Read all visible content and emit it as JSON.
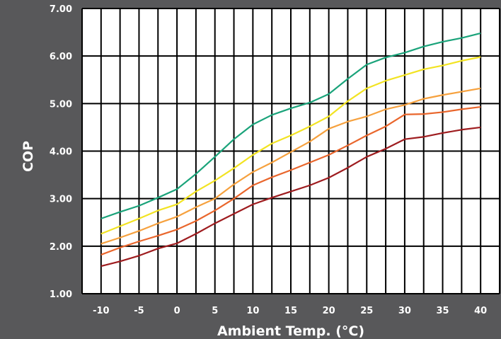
{
  "chart_data": {
    "type": "line",
    "xlabel": "Ambient Temp. (°C)",
    "ylabel": "COP",
    "x_tick_labels": [
      "-10",
      "-5",
      "0",
      "5",
      "10",
      "15",
      "20",
      "25",
      "30",
      "35",
      "40"
    ],
    "y_tick_labels": [
      "1.00",
      "2.00",
      "3.00",
      "4.00",
      "5.00",
      "6.00",
      "7.00"
    ],
    "xlim": [
      -12.5,
      42.5
    ],
    "ylim": [
      1,
      7
    ],
    "grid": "vertical lines every 2.5 °C, horizontal lines at each 1.00",
    "x": [
      -10,
      -7.5,
      -5,
      -2.5,
      0,
      2.5,
      5,
      7.5,
      10,
      12.5,
      15,
      17.5,
      20,
      22.5,
      25,
      27.5,
      30,
      32.5,
      35,
      37.5,
      40
    ],
    "series": [
      {
        "color": "#1aa37a",
        "values": [
          2.58,
          2.72,
          2.85,
          3.02,
          3.2,
          3.52,
          3.88,
          4.25,
          4.56,
          4.76,
          4.9,
          5.02,
          5.2,
          5.52,
          5.82,
          5.97,
          6.07,
          6.2,
          6.3,
          6.38,
          6.48
        ]
      },
      {
        "color": "#f2e322",
        "values": [
          2.26,
          2.42,
          2.58,
          2.75,
          2.88,
          3.15,
          3.38,
          3.64,
          3.92,
          4.16,
          4.33,
          4.52,
          4.73,
          5.05,
          5.32,
          5.48,
          5.6,
          5.72,
          5.8,
          5.9,
          5.98
        ]
      },
      {
        "color": "#f6a13e",
        "values": [
          2.05,
          2.18,
          2.32,
          2.48,
          2.62,
          2.82,
          3.0,
          3.3,
          3.56,
          3.76,
          3.98,
          4.2,
          4.47,
          4.62,
          4.73,
          4.88,
          4.97,
          5.1,
          5.18,
          5.25,
          5.32
        ]
      },
      {
        "color": "#e9662c",
        "values": [
          1.82,
          1.97,
          2.1,
          2.22,
          2.35,
          2.53,
          2.75,
          3.0,
          3.28,
          3.45,
          3.6,
          3.76,
          3.92,
          4.12,
          4.33,
          4.52,
          4.77,
          4.78,
          4.82,
          4.88,
          4.93
        ]
      },
      {
        "color": "#9e1c1f",
        "values": [
          1.58,
          1.68,
          1.8,
          1.95,
          2.06,
          2.26,
          2.48,
          2.68,
          2.88,
          3.02,
          3.15,
          3.28,
          3.44,
          3.65,
          3.88,
          4.05,
          4.25,
          4.3,
          4.38,
          4.45,
          4.5
        ]
      }
    ]
  }
}
